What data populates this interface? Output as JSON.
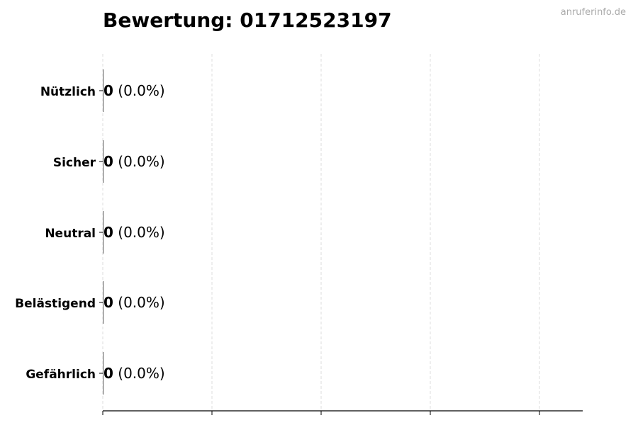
{
  "chart_data": {
    "type": "bar",
    "orientation": "horizontal",
    "title": "Bewertung: 01712523197",
    "categories": [
      "Nützlich",
      "Sicher",
      "Neutral",
      "Belästigend",
      "Gefährlich"
    ],
    "values": [
      0,
      0,
      0,
      0,
      0
    ],
    "percent_labels": [
      "(0.0%)",
      "(0.0%)",
      "(0.0%)",
      "(0.0%)",
      "(0.0%)"
    ],
    "xlabel": "",
    "ylabel": "",
    "grid": "vertical dashed",
    "x_tick_count": 5,
    "x_tick_labels_shown": false
  },
  "watermark": "anruferinfo.de",
  "colors": {
    "bar_edge": "#333333",
    "grid": "#dddddd",
    "axis": "#000000",
    "watermark": "#aaaaaa"
  }
}
